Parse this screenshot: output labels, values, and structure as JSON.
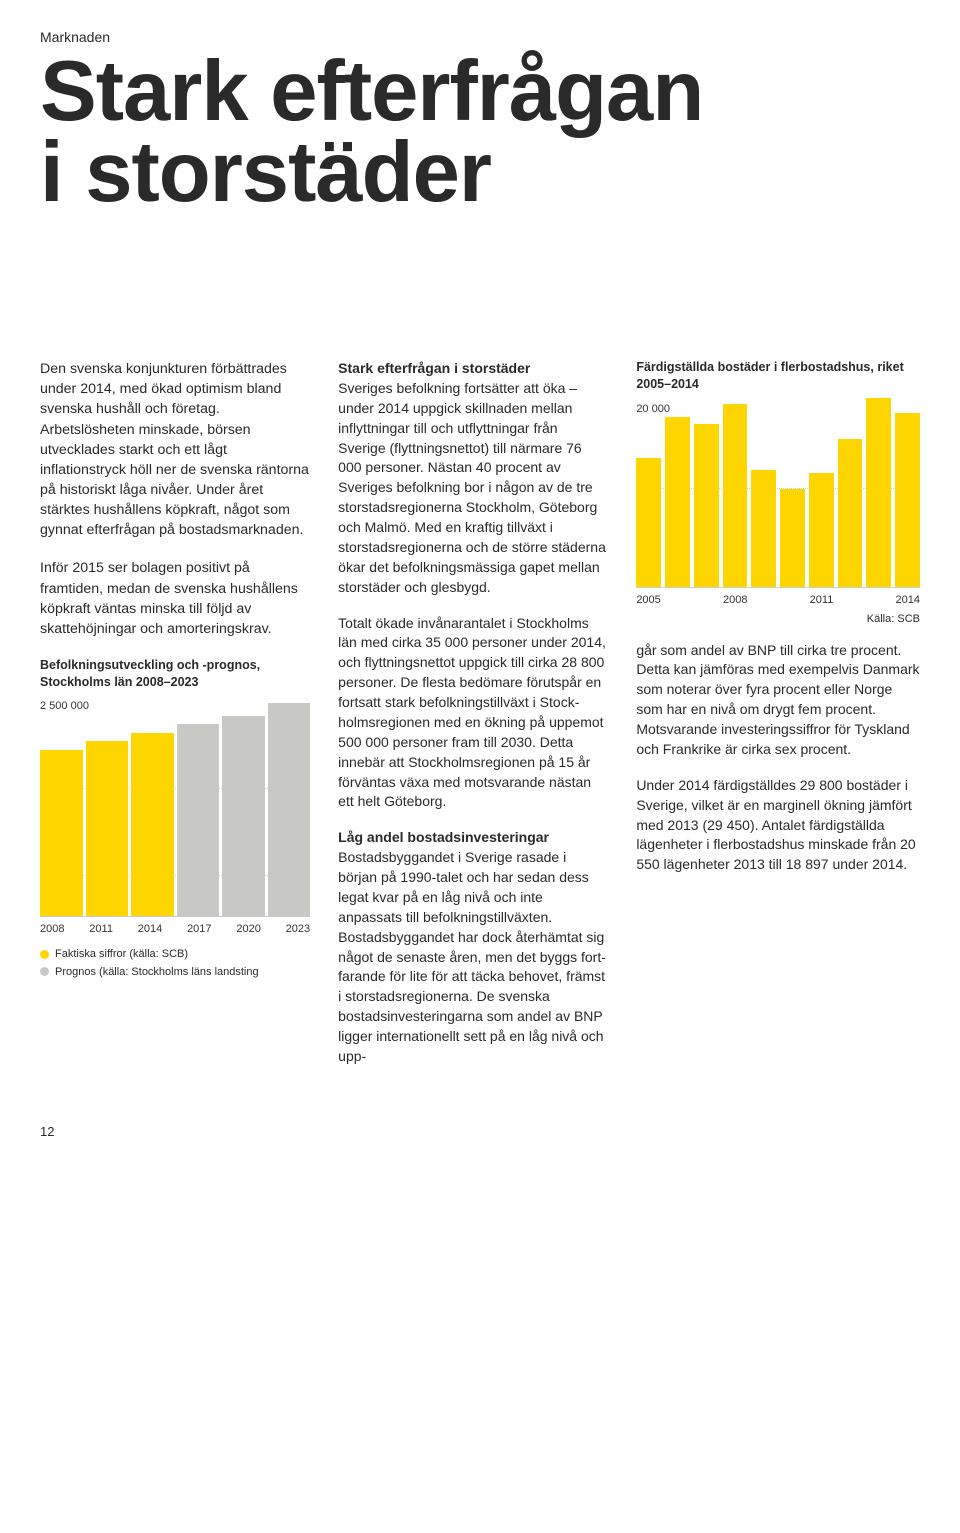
{
  "section_label": "Marknaden",
  "headline": "Stark efterfrågan\ni storstäder",
  "page_number": "12",
  "col1": {
    "intro_p1": "Den svenska konjunkturen för­bättrades under 2014, med ökad optimism bland svenska hushåll och företag. Arbetslösheten minska­de, börsen utvecklades starkt och ett lågt inflationstryck höll ner de svenska räntorna på historiskt låga nivåer. Under året stärktes hushål­lens köpkraft, något som gynnat efterfrågan på bostadsmarknaden.",
    "intro_p2": "Inför 2015 ser bolagen positivt på framtiden, medan de svenska hushållens köpkraft väntas minska till följd av skattehöjningar och amorteringskrav."
  },
  "chart1": {
    "title": "Befolkningsutveckling och -prognos, Stockholms län 2008–2023",
    "y_label": "2 500 000",
    "type": "bar",
    "categories": [
      "2008",
      "2011",
      "2014",
      "2017",
      "2020",
      "2023"
    ],
    "values_pct": [
      78,
      82,
      86,
      90,
      94,
      100
    ],
    "colors": [
      "#ffd500",
      "#ffd500",
      "#ffd500",
      "#c8c8c5",
      "#c8c8c5",
      "#c8c8c5"
    ],
    "gridlines_pct": [
      18,
      58
    ],
    "legend": [
      {
        "color": "#ffd500",
        "label": "Faktiska siffror (källa: SCB)"
      },
      {
        "color": "#c8c8c5",
        "label": "Prognos (källa: Stockholms läns landsting"
      }
    ]
  },
  "col2": {
    "h1": "Stark efterfrågan i storstäder",
    "p1": "Sveriges befolkning fortsätter att öka – under 2014 uppgick skillna­den mellan inflyttningar till och utflyttningar från Sverige (flytt­ningsnettot) till närmare 76 000 personer. Nästan 40 procent av Sveriges befolkning bor i någon av de tre storstadsregionerna Stock­holm, Göteborg och Malmö. Med en kraftig tillväxt i storstadsregioner­na och de större städerna ökar det befolkningsmässiga gapet mellan storstäder och glesbygd.",
    "p2": "Totalt ökade invånarantalet i Stockholms län med cirka 35 000 personer under 2014, och flyttningsnettot uppgick till cirka 28 800 personer. De flesta bedömare förutspår en fortsatt stark befolkningstillväxt i Stock­holmsregionen med en ökning på uppemot 500 000 personer fram till 2030. Detta innebär att Stockholmsregionen på 15 år förväntas växa med motsvarande nästan ett helt Göteborg.",
    "h2": "Låg andel bostadsinvesteringar",
    "p3": "Bostadsbyggandet i Sverige rasade i början på 1990-talet och har sedan dess legat kvar på en låg nivå och inte anpassats till befolk­ningstillväxten. Bostadsbyggandet har dock återhämtat sig något de senaste åren, men det byggs fort­farande för lite för att täcka beho­vet, främst i storstadsregionerna. De svenska bostadsinvesteringarna som andel av BNP ligger internatio­nellt sett på en låg nivå och upp-"
  },
  "chart2": {
    "title": "Färdigställda bostäder i flerbostadshus, riket 2005–2014",
    "y_label": "20 000",
    "source": "Källa: SCB",
    "type": "bar",
    "categories": [
      "2005",
      "2008",
      "2011",
      "2014"
    ],
    "values_pct": [
      68,
      90,
      86,
      97,
      62,
      52,
      60,
      78,
      100,
      92
    ],
    "bar_color": "#ffd500",
    "gridlines_pct": [
      52
    ]
  },
  "col3": {
    "p1": "går som andel av BNP till cirka tre procent. Detta kan jämföras med exempelvis Danmark som noterar över fyra procent eller Norge som har en nivå om drygt fem procent. Motsvarande investeringssiffror för Tyskland och Frankrike är cirka sex procent.",
    "p2": "Under 2014 färdigställdes 29 800 bostäder i Sverige, vilket är en marginell ökning jämfört med 2013 (29 450). Antalet färdigställda lägenheter i flerbostadshus min­skade från 20 550 lägenheter 2013 till 18 897 under 2014."
  }
}
